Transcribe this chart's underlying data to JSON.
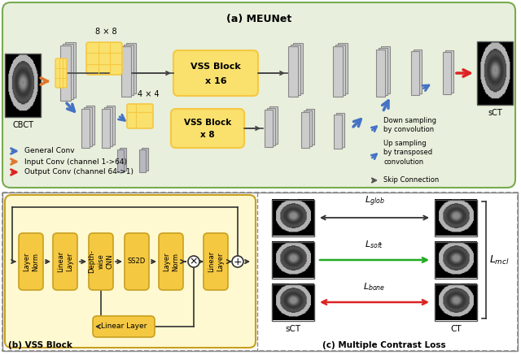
{
  "fig_width": 6.4,
  "fig_height": 4.37,
  "dpi": 100,
  "bg_white": "#ffffff",
  "bg_a": "#e8efdc",
  "bg_b": "#fef9d0",
  "yellow_fill": "#f5c842",
  "yellow_light": "#fae16e",
  "gray_fm": "#c8c8c8",
  "gray_fm_dark": "#a0a0a0",
  "arrow_blue": "#4472c4",
  "arrow_orange": "#e07830",
  "arrow_red": "#dd2222",
  "arrow_green": "#22aa22",
  "arrow_dark": "#444444",
  "title_a": "(a) MEUNet",
  "title_b": "(b) VSS Block",
  "title_c": "(c) Multiple Contrast Loss"
}
